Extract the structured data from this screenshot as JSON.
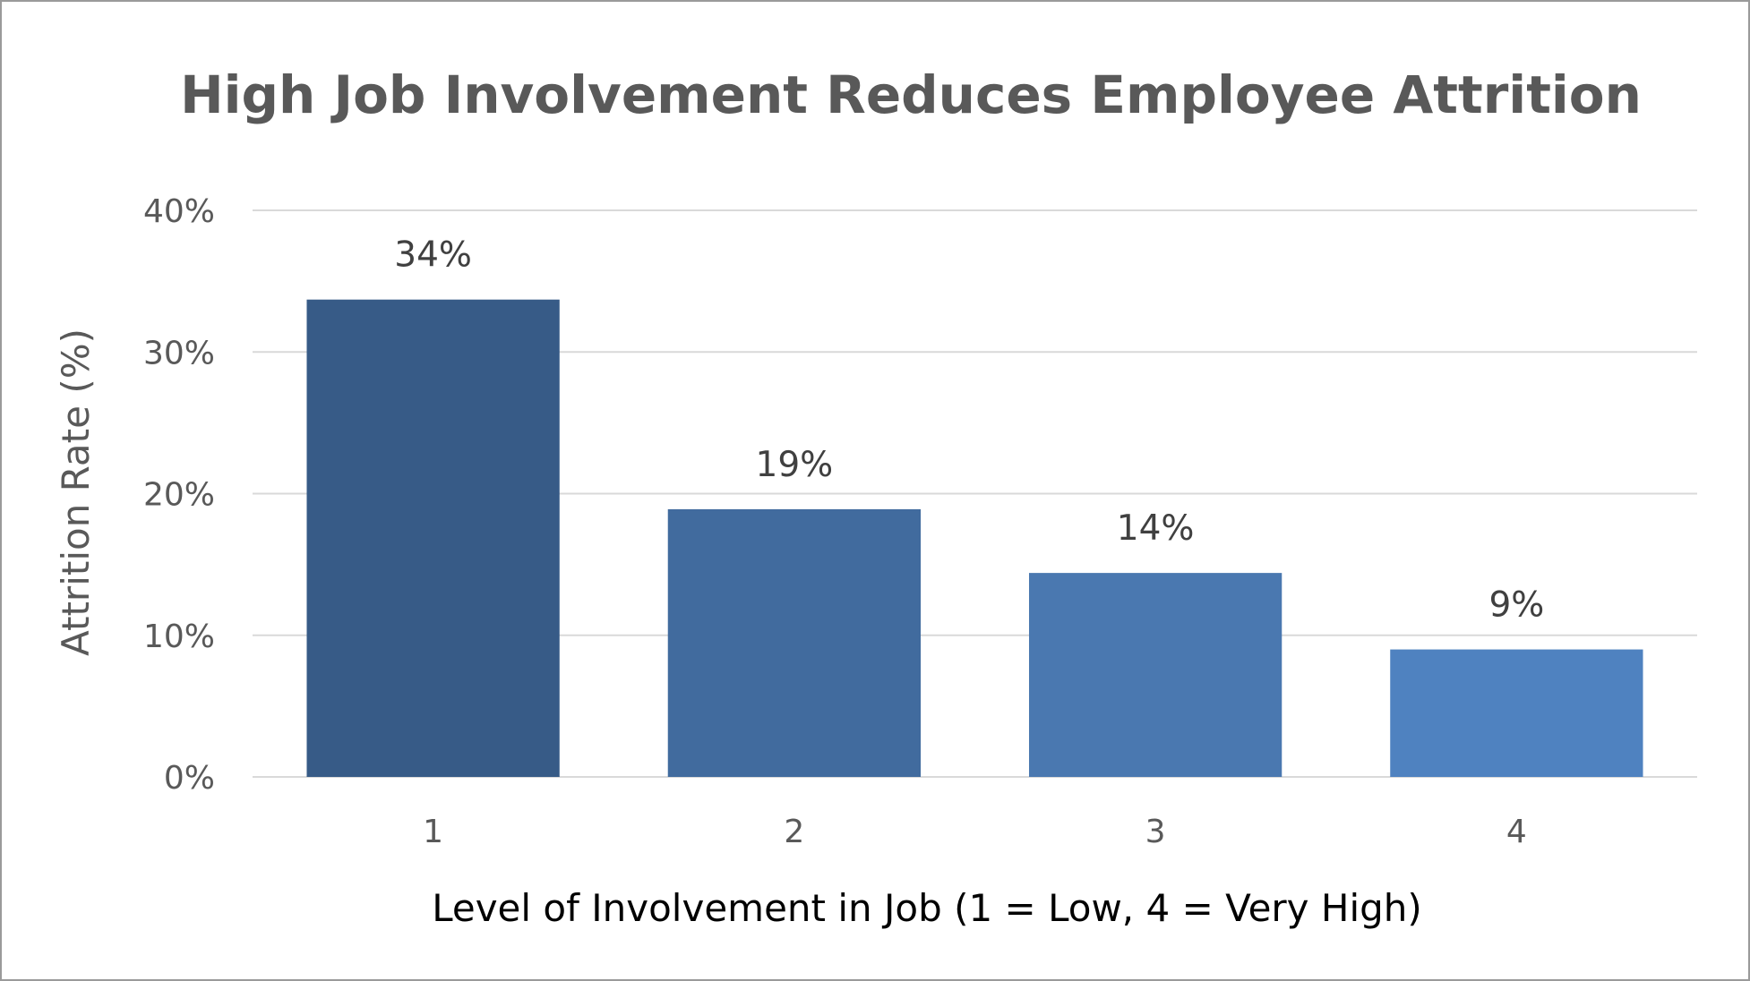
{
  "chart_data": {
    "type": "bar",
    "title": "High Job Involvement Reduces Employee Attrition",
    "xlabel": "Level of Involvement in Job (1 = Low, 4 = Very High)",
    "ylabel": "Attrition Rate (%)",
    "categories": [
      "1",
      "2",
      "3",
      "4"
    ],
    "values": [
      33.7,
      18.9,
      14.4,
      9.0
    ],
    "data_labels": [
      "34%",
      "19%",
      "14%",
      "9%"
    ],
    "ylim": [
      0,
      40
    ],
    "yticks": [
      0,
      10,
      20,
      30,
      40
    ],
    "ytick_labels": [
      "0%",
      "10%",
      "20%",
      "30%",
      "40%"
    ],
    "grid": true,
    "legend": "none",
    "bar_colors": [
      "#375B87",
      "#416B9E",
      "#4A78B0",
      "#4F82C0"
    ],
    "grid_color": "#d9d9d9"
  }
}
